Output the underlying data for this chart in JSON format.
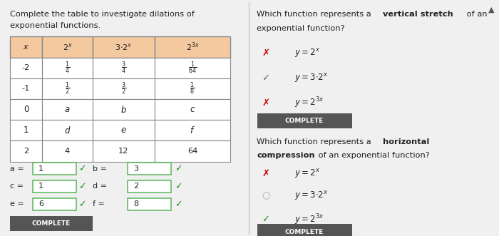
{
  "bg_color": "#f0f0f0",
  "left_title1": "Complete the table to investigate dilations of",
  "left_title2": "exponential functions.",
  "header_bg": "#f5c9a0",
  "header_border": "#c0a080",
  "table_border": "#888888",
  "table_bg": "#ffffff",
  "col_headers": [
    "x",
    "$2^x$",
    "$3\\cdot2^x$",
    "$2^{3x}$"
  ],
  "rows": [
    [
      "-2",
      "$\\frac{1}{4}$",
      "$\\frac{3}{4}$",
      "$\\frac{1}{64}$"
    ],
    [
      "-1",
      "$\\frac{1}{2}$",
      "$\\frac{3}{2}$",
      "$\\frac{1}{8}$"
    ],
    [
      "0",
      "$a$",
      "$b$",
      "$c$"
    ],
    [
      "1",
      "$d$",
      "$e$",
      "$f$"
    ],
    [
      "2",
      "4",
      "12",
      "64"
    ]
  ],
  "answers_left_labels": [
    "a = ",
    "c = ",
    "e = "
  ],
  "answers_left_vals": [
    "1",
    "1",
    "6"
  ],
  "answers_right_labels": [
    "b = ",
    "d = ",
    "f = "
  ],
  "answers_right_vals": [
    "3",
    "2",
    "8"
  ],
  "q1_text_normal": "Which function represents a ",
  "q1_text_bold": "vertical stretch",
  "q1_text_end": " of an",
  "q1_text_line2": "exponential function?",
  "q1_options": [
    {
      "sym": "x",
      "sym_color": "#cc0000",
      "text": "$y = 2^x$",
      "marker": "cross"
    },
    {
      "sym": "✓",
      "sym_color": "#666666",
      "text": "$y = 3\\cdot2^x$",
      "marker": "check_gray"
    },
    {
      "sym": "x",
      "sym_color": "#cc0000",
      "text": "$y = 2^{3x}$",
      "marker": "cross"
    }
  ],
  "q2_text_normal": "Which function represents a ",
  "q2_text_bold1": "horizontal",
  "q2_text_line2_bold": "compression",
  "q2_text_line2_normal": " of an exponential function?",
  "q2_options": [
    {
      "sym": "x",
      "sym_color": "#cc0000",
      "text": "$y = 2^x$",
      "marker": "cross"
    },
    {
      "sym": "○",
      "sym_color": "#aaaaaa",
      "text": "$y = 3\\cdot2^x$",
      "marker": "circle"
    },
    {
      "sym": "✓",
      "sym_color": "#228B22",
      "text": "$y = 2^{3x}$",
      "marker": "check_green"
    }
  ],
  "complete_bg": "#555555",
  "complete_text": "COMPLETE",
  "check_green": "#228B22",
  "check_gray": "#666666",
  "answer_box_border": "#66bb66",
  "answer_box_bg": "#ffffff"
}
